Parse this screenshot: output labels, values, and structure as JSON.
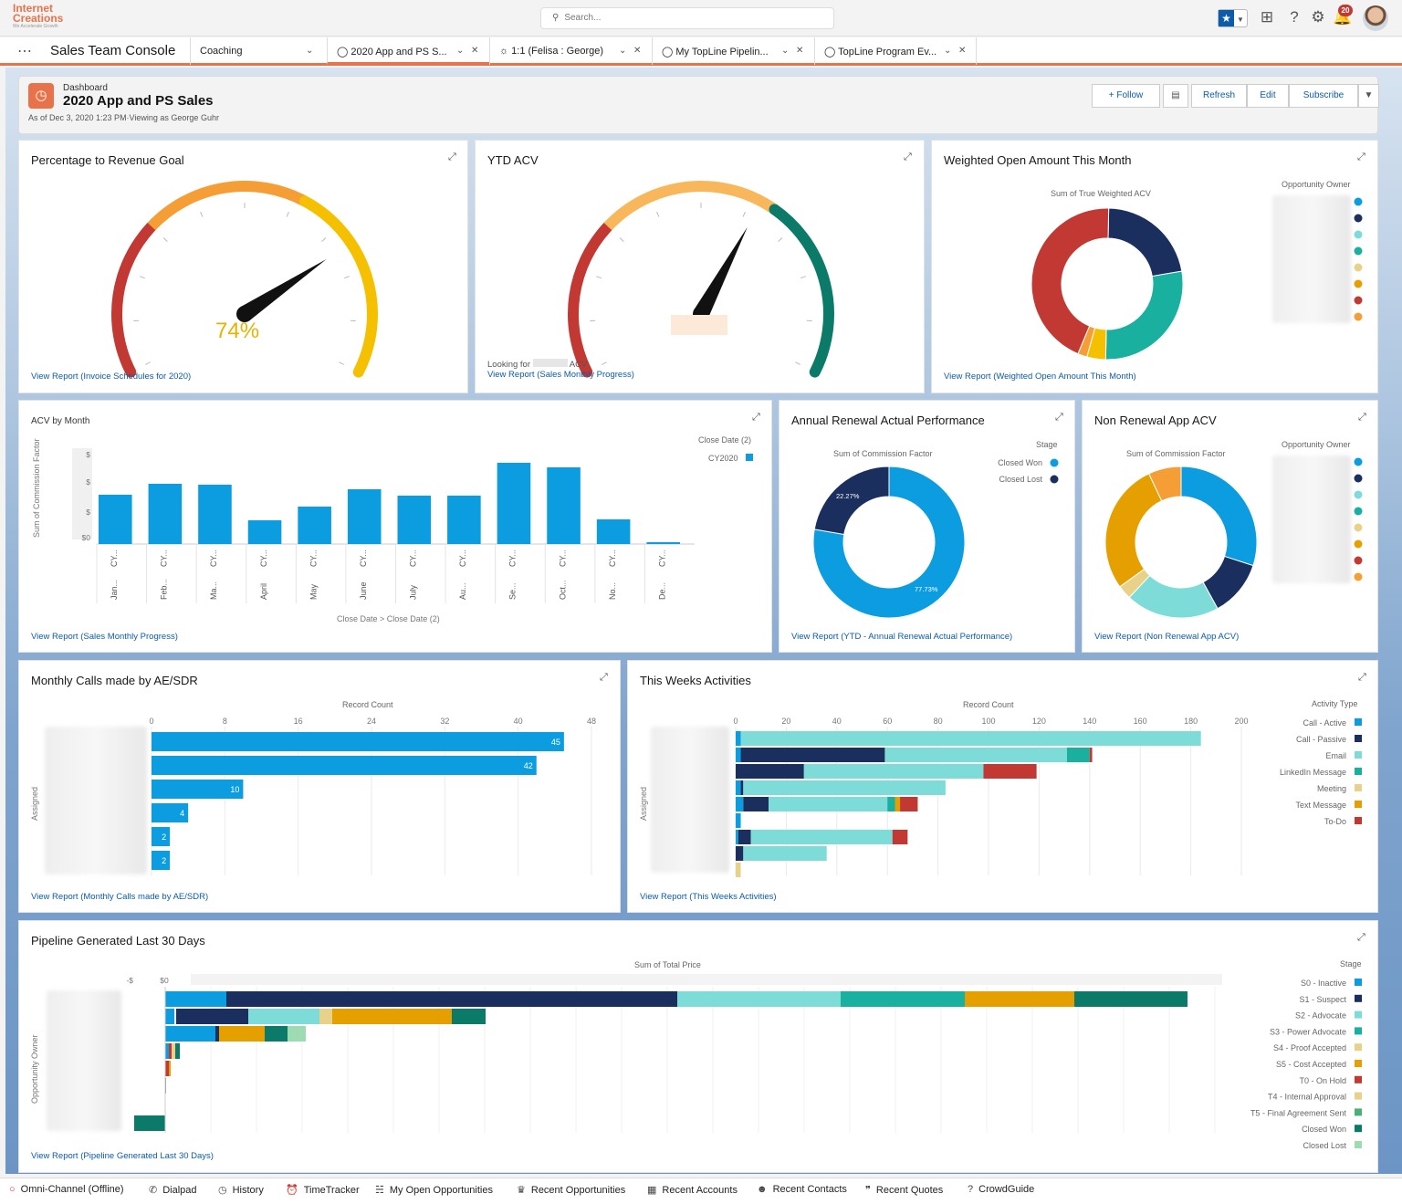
{
  "logo": {
    "line1": "Internet",
    "line2": "Creations",
    "tagline": "We Accelerate Growth"
  },
  "search": {
    "placeholder": "Search..."
  },
  "notifications": {
    "count": "20"
  },
  "nav": {
    "app_name": "Sales Team Console",
    "tabs": [
      {
        "label": "Coaching"
      },
      {
        "label": "2020 App and PS S..."
      },
      {
        "label": "1:1 (Felisa : George)"
      },
      {
        "label": "My TopLine Pipelin..."
      },
      {
        "label": "TopLine Program Ev..."
      }
    ]
  },
  "dashboard": {
    "type": "Dashboard",
    "title": "2020 App and PS Sales",
    "subtitle": "As of Dec 3, 2020 1:23 PM·Viewing as George Guhr",
    "buttons": {
      "follow": "+ Follow",
      "refresh": "Refresh",
      "edit": "Edit",
      "subscribe": "Subscribe"
    }
  },
  "cards": {
    "gauge1": {
      "title": "Percentage to Revenue Goal",
      "value_label": "74%",
      "value": 0.74,
      "link": "View Report (Invoice Schedules for 2020)"
    },
    "gauge2": {
      "title": "YTD ACV",
      "looking": "Looking for",
      "acv": "ACV",
      "value": 0.62,
      "link": "View Report (Sales Monthly Progress)"
    },
    "donut1": {
      "title": "Weighted Open Amount This Month",
      "measure": "Sum of True Weighted ACV",
      "legend_title": "Opportunity Owner",
      "link": "View Report (Weighted Open Amount This Month)"
    },
    "acv_month": {
      "title": "ACV by Month",
      "ylabel": "Sum of Commission Factor",
      "legend_title": "Close Date (2)",
      "legend_item": "CY2020",
      "xaxis": "Close Date  >  Close Date (2)",
      "link": "View Report (Sales Monthly Progress)"
    },
    "renewal": {
      "title": "Annual Renewal Actual Performance",
      "measure": "Sum of Commission Factor",
      "legend_title": "Stage",
      "legend": [
        "Closed Won",
        "Closed Lost"
      ],
      "pct_lost": "22.27%",
      "pct_won": "77.73%",
      "link": "View Report (YTD - Annual Renewal Actual Performance)"
    },
    "nonrenewal": {
      "title": "Non Renewal App ACV",
      "measure": "Sum of Commission Factor",
      "legend_title": "Opportunity Owner",
      "link": "View Report (Non Renewal App ACV)"
    },
    "calls": {
      "title": "Monthly Calls made by AE/SDR",
      "measure": "Record Count",
      "ylabel": "Assigned",
      "link": "View Report (Monthly Calls made by AE/SDR)"
    },
    "activities": {
      "title": "This Weeks Activities",
      "measure": "Record Count",
      "ylabel": "Assigned",
      "legend_title": "Activity Type",
      "link": "View Report (This Weeks Activities)"
    },
    "pipeline": {
      "title": "Pipeline Generated Last 30 Days",
      "measure": "Sum of Total Price",
      "ylabel": "Opportunity Owner",
      "legend_title": "Stage",
      "link": "View Report (Pipeline Generated Last 30 Days)"
    }
  },
  "colors": {
    "blue": "#0b9de0",
    "navy": "#1b2f5e",
    "teal": "#1ab0a0",
    "lightteal": "#7ddcd8",
    "red": "#c23934",
    "gold": "#e5a000",
    "lightgold": "#e8d28a",
    "orange": "#f59e35"
  },
  "chart_data": [
    {
      "type": "bar",
      "title": "ACV by Month",
      "ylabel": "Sum of Commission Factor",
      "xlabel": "Close Date > Close Date (2)",
      "categories": [
        "Jan...",
        "Feb...",
        "Ma...",
        "April",
        "May",
        "June",
        "July",
        "Au...",
        "Se...",
        "Oct...",
        "No...",
        "De..."
      ],
      "category_prefix": "CY...",
      "series": [
        {
          "name": "CY2020",
          "values": [
            54,
            66,
            65,
            26,
            41,
            60,
            53,
            53,
            89,
            84,
            27,
            2
          ]
        }
      ],
      "y_tick_labels": [
        "$",
        "$",
        "$",
        "$0"
      ]
    },
    {
      "type": "bar",
      "title": "Monthly Calls made by AE/SDR",
      "orientation": "horizontal",
      "xlabel": "Record Count",
      "ylabel": "Assigned",
      "x_ticks": [
        0,
        8,
        16,
        24,
        32,
        40,
        48
      ],
      "values": [
        45,
        42,
        10,
        4,
        2,
        2
      ]
    },
    {
      "type": "bar",
      "title": "This Weeks Activities",
      "orientation": "horizontal",
      "stacked": true,
      "xlabel": "Record Count",
      "ylabel": "Assigned",
      "x_ticks": [
        0,
        20,
        40,
        60,
        80,
        100,
        120,
        140,
        160,
        180,
        200
      ],
      "series": [
        {
          "name": "Call - Active",
          "values": [
            2,
            2,
            0,
            2,
            3,
            2,
            1,
            0,
            0
          ]
        },
        {
          "name": "Call - Passive",
          "values": [
            0,
            57,
            27,
            1,
            10,
            0,
            5,
            3,
            0
          ]
        },
        {
          "name": "Email",
          "values": [
            182,
            72,
            71,
            80,
            47,
            0,
            56,
            33,
            0
          ]
        },
        {
          "name": "LinkedIn Message",
          "values": [
            0,
            9,
            0,
            0,
            0,
            0,
            0,
            0,
            0
          ]
        },
        {
          "name": "Meeting",
          "values": [
            0,
            0,
            0,
            0,
            0,
            0,
            0,
            0,
            2
          ]
        },
        {
          "name": "Text Message",
          "values": [
            0,
            0,
            0,
            0,
            2,
            0,
            0,
            0,
            0
          ]
        },
        {
          "name": "To-Do",
          "values": [
            0,
            1,
            21,
            0,
            7,
            0,
            6,
            0,
            0
          ]
        }
      ],
      "teal_values": [
        0,
        0,
        0,
        0,
        3,
        0,
        0,
        0,
        0
      ]
    },
    {
      "type": "bar",
      "title": "Pipeline Generated Last 30 Days",
      "orientation": "horizontal",
      "stacked": true,
      "xlabel": "Sum of Total Price",
      "ylabel": "Opportunity Owner",
      "x_tick_labels": [
        "-$",
        "$0"
      ],
      "legend": [
        "S0 - Inactive",
        "S1 - Suspect",
        "S2 - Advocate",
        "S3 - Power Advocate",
        "S4 - Proof Accepted",
        "S5 - Cost Accepted",
        "T0 - On Hold",
        "T4 - Internal Approval",
        "T5 - Final Agreement Sent",
        "Closed Won",
        "Closed Lost"
      ]
    },
    {
      "type": "pie",
      "title": "Annual Renewal Actual Performance",
      "series": [
        {
          "name": "Closed Won",
          "value": 77.73
        },
        {
          "name": "Closed Lost",
          "value": 22.27
        }
      ]
    },
    {
      "type": "pie",
      "title": "Weighted Open Amount This Month",
      "values": [
        22,
        28,
        4,
        2,
        44
      ]
    },
    {
      "type": "pie",
      "title": "Non Renewal App ACV",
      "values": [
        30,
        12,
        20,
        3,
        28,
        7
      ]
    }
  ],
  "footer": {
    "items": [
      "Omni-Channel (Offline)",
      "Dialpad",
      "History",
      "TimeTracker",
      "My Open Opportunities",
      "Recent Opportunities",
      "Recent Accounts",
      "Recent Contacts",
      "Recent Quotes",
      "CrowdGuide"
    ]
  }
}
